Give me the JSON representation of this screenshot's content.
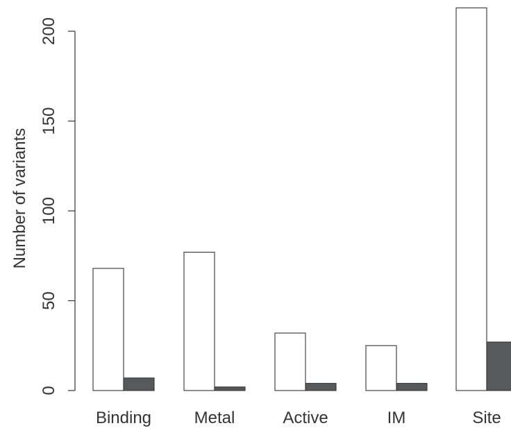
{
  "chart_data": {
    "type": "bar",
    "title": "",
    "xlabel": "",
    "ylabel": "Number of variants",
    "categories": [
      "Binding",
      "Metal",
      "Active",
      "IM",
      "Site"
    ],
    "series": [
      {
        "values": [
          68,
          77,
          32,
          25,
          213
        ],
        "color": "#ffffff"
      },
      {
        "values": [
          7,
          2,
          4,
          4,
          27
        ],
        "color": "#58595b"
      }
    ],
    "ylim": [
      0,
      200
    ],
    "yticks": [
      0,
      50,
      100,
      150,
      200
    ],
    "grid": false,
    "legend": "none"
  }
}
